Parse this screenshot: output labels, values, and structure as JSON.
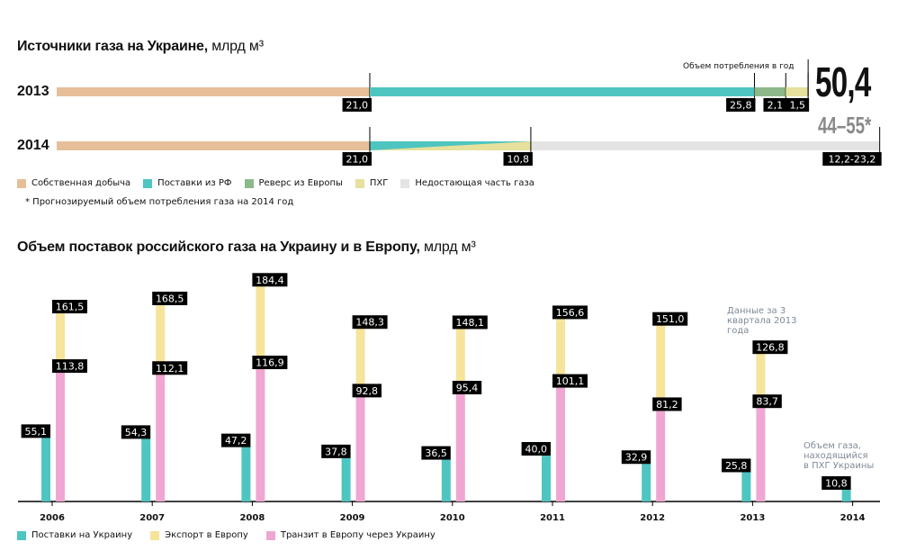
{
  "chart_data": [
    {
      "type": "bar",
      "subtype": "horizontal-stacked",
      "title": "Источники газа на Украине,",
      "unit": "млрд м³",
      "rows": [
        {
          "year": "2013",
          "segments": [
            {
              "series": "Собственная добыча",
              "value": 21.0,
              "label": "21,0"
            },
            {
              "series": "Поставки из РФ",
              "value": 25.8,
              "label": "25,8"
            },
            {
              "series": "Реверс из Европы",
              "value": 2.1,
              "label": "2,1"
            },
            {
              "series": "ПХГ",
              "value": 1.5,
              "label": "1,5"
            }
          ],
          "total_label": "50,4"
        },
        {
          "year": "2014",
          "segments": [
            {
              "series": "Собственная добыча",
              "value": 21.0,
              "label": "21,0"
            },
            {
              "series": "ПХГ",
              "value": 10.8,
              "label": "10,8"
            },
            {
              "series": "Недостающая часть газа",
              "value_range": [
                12.2,
                23.2
              ],
              "label": "12,2-23,2"
            }
          ],
          "total_label": "44–55*"
        }
      ],
      "consumption_label": "Объем потребления в год",
      "legend": [
        {
          "name": "Собственная добыча",
          "color": "#e6bf9a"
        },
        {
          "name": "Поставки из РФ",
          "color": "#4ec5c1"
        },
        {
          "name": "Реверс из Европы",
          "color": "#8db98a"
        },
        {
          "name": "ПХГ",
          "color": "#e6e19c"
        },
        {
          "name": "Недостающая часть газа",
          "color": "#e4e4e4"
        }
      ],
      "footnote": "* Прогнозируемый объем потребления газа на 2014 год",
      "xlim": [
        0,
        55.2
      ]
    },
    {
      "type": "bar",
      "title": "Объем поставок российского газа на Украину и в Европу,",
      "unit": "млрд м³",
      "categories": [
        "2006",
        "2007",
        "2008",
        "2009",
        "2010",
        "2011",
        "2012",
        "2013",
        "2014"
      ],
      "series": [
        {
          "name": "Поставки на Украину",
          "color": "#4ec5c1",
          "values": [
            55.1,
            54.3,
            47.2,
            37.8,
            36.5,
            40.0,
            32.9,
            25.8,
            10.8
          ],
          "labels": [
            "55,1",
            "54,3",
            "47,2",
            "37,8",
            "36,5",
            "40,0",
            "32,9",
            "25,8",
            "10,8"
          ]
        },
        {
          "name": "Экспорт в Европу",
          "color": "#f5e49a",
          "values": [
            161.5,
            168.5,
            184.4,
            148.3,
            148.1,
            156.6,
            151.0,
            126.8,
            null
          ],
          "labels": [
            "161,5",
            "168,5",
            "184,4",
            "148,3",
            "148,1",
            "156,6",
            "151,0",
            "126,8",
            ""
          ]
        },
        {
          "name": "Транзит в Европу через Украину",
          "color": "#f0a6d2",
          "values": [
            113.8,
            112.1,
            116.9,
            92.8,
            95.4,
            101.1,
            81.2,
            83.7,
            null
          ],
          "labels": [
            "113,8",
            "112,1",
            "116,9",
            "92,8",
            "95,4",
            "101,1",
            "81,2",
            "83,7",
            ""
          ]
        }
      ],
      "annotations": [
        "Данные за 3 квартала 2013 года",
        "Объем газа, находящийся в ПХГ Украины"
      ],
      "ylim": [
        0,
        190
      ]
    }
  ]
}
